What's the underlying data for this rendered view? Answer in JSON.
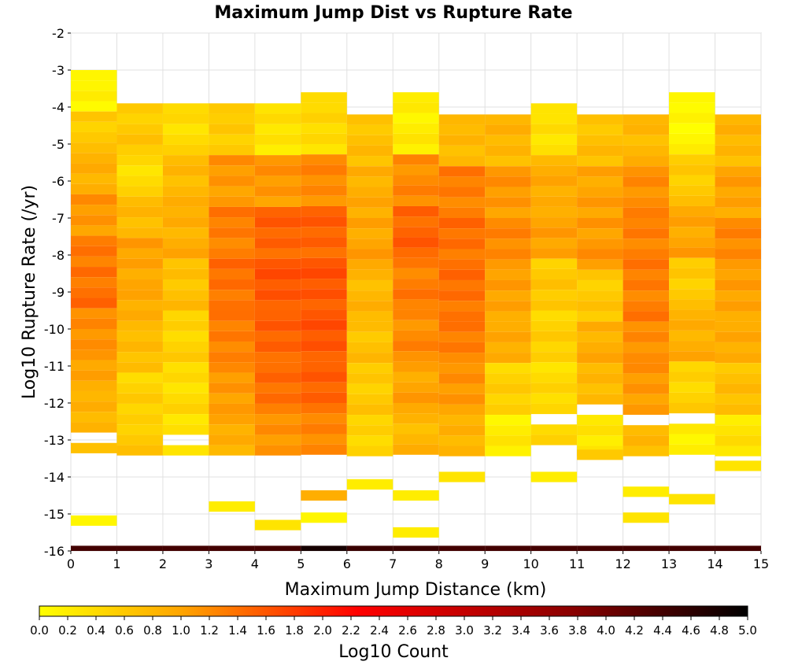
{
  "chart_data": {
    "type": "heatmap",
    "title": "Maximum Jump Dist vs Rupture Rate",
    "xlabel": "Maximum Jump Distance (km)",
    "ylabel": "Log10 Rupture Rate (/yr)",
    "xlim": [
      0,
      15
    ],
    "ylim": [
      -16,
      -2
    ],
    "x_ticks": [
      "0",
      "1",
      "2",
      "3",
      "4",
      "5",
      "6",
      "7",
      "8",
      "9",
      "10",
      "11",
      "12",
      "13",
      "14",
      "15"
    ],
    "y_ticks": [
      "-2",
      "-3",
      "-4",
      "-5",
      "-6",
      "-7",
      "-8",
      "-9",
      "-10",
      "-11",
      "-12",
      "-13",
      "-14",
      "-15",
      "-16"
    ],
    "x_bin_width": 1,
    "y_bin_width": 0.28,
    "y_bin_start": -16,
    "grid": true,
    "colorbar": {
      "label": "Log10 Count",
      "min": 0.0,
      "max": 5.0,
      "ticks": [
        "0.0",
        "0.2",
        "0.4",
        "0.6",
        "0.8",
        "1.0",
        "1.2",
        "1.4",
        "1.6",
        "1.8",
        "2.0",
        "2.2",
        "2.4",
        "2.6",
        "2.8",
        "3.0",
        "3.2",
        "3.4",
        "3.6",
        "3.8",
        "4.0",
        "4.2",
        "4.4",
        "4.6",
        "4.8",
        "5.0"
      ],
      "colors": [
        "#ffff00",
        "#ffa500",
        "#ff0000",
        "#8b0000",
        "#000000"
      ]
    },
    "columns": [
      {
        "x": 0,
        "ymax": -3.0,
        "cells": [
          {
            "y": -15.18,
            "v": 0.1
          }
        ],
        "base_v": 1.0,
        "gaps": [
          -13.0
        ],
        "levels": [
          0.1,
          0.6,
          0.9,
          1.1,
          1.3,
          1.4,
          1.2,
          1.0,
          0.8,
          0.7
        ]
      },
      {
        "x": 1,
        "ymax": -3.9,
        "cells": [],
        "base_v": 0.8,
        "gaps": [],
        "levels": [
          0.6,
          0.4,
          0.8,
          1.0,
          0.9,
          0.7,
          0.5,
          0.6
        ]
      },
      {
        "x": 2,
        "ymax": -3.9,
        "cells": [],
        "base_v": 0.7,
        "gaps": [
          -13.0
        ],
        "levels": [
          0.4,
          0.8,
          0.9,
          0.7,
          0.5,
          0.4,
          0.3
        ]
      },
      {
        "x": 3,
        "ymax": -3.9,
        "cells": [
          {
            "y": -14.8,
            "v": 0.2
          }
        ],
        "base_v": 1.2,
        "gaps": [],
        "levels": [
          0.6,
          1.1,
          1.3,
          1.4,
          1.3,
          1.1,
          0.9
        ]
      },
      {
        "x": 4,
        "ymax": -3.9,
        "cells": [
          {
            "y": -15.3,
            "v": 0.3
          }
        ],
        "base_v": 1.3,
        "gaps": [],
        "levels": [
          0.3,
          1.1,
          1.5,
          1.6,
          1.5,
          1.4,
          1.1
        ]
      },
      {
        "x": 5,
        "ymax": -3.6,
        "cells": [
          {
            "y": -14.5,
            "v": 0.9
          },
          {
            "y": -15.1,
            "v": 0.1
          }
        ],
        "base_v": 1.4,
        "gaps": [],
        "levels": [
          0.4,
          1.2,
          1.5,
          1.6,
          1.6,
          1.5,
          1.2
        ]
      },
      {
        "x": 6,
        "ymax": -4.2,
        "cells": [
          {
            "y": -14.2,
            "v": 0.2
          }
        ],
        "base_v": 1.0,
        "gaps": [],
        "levels": [
          0.7,
          0.9,
          1.0,
          0.8,
          0.7,
          0.6,
          0.5
        ]
      },
      {
        "x": 7,
        "ymax": -3.6,
        "cells": [
          {
            "y": -14.5,
            "v": 0.2
          },
          {
            "y": -15.5,
            "v": 0.2
          }
        ],
        "base_v": 1.3,
        "gaps": [],
        "levels": [
          0.2,
          1.2,
          1.5,
          1.3,
          1.2,
          1.0,
          0.8
        ]
      },
      {
        "x": 8,
        "ymax": -4.2,
        "cells": [
          {
            "y": -14.0,
            "v": 0.3
          }
        ],
        "base_v": 1.3,
        "gaps": [],
        "levels": [
          0.8,
          1.3,
          1.4,
          1.4,
          1.3,
          1.1,
          0.8
        ]
      },
      {
        "x": 9,
        "ymax": -4.2,
        "cells": [],
        "base_v": 1.1,
        "gaps": [],
        "levels": [
          0.8,
          1.1,
          1.2,
          1.0,
          0.9,
          0.5,
          0.2
        ]
      },
      {
        "x": 10,
        "ymax": -3.9,
        "cells": [
          {
            "y": -14.0,
            "v": 0.2
          }
        ],
        "base_v": 0.9,
        "gaps": [
          -12.4,
          -13.2
        ],
        "levels": [
          0.3,
          0.9,
          1.0,
          0.6,
          0.5,
          0.4,
          0.4
        ]
      },
      {
        "x": 11,
        "ymax": -4.2,
        "cells": [
          {
            "y": -13.4,
            "v": 0.6
          }
        ],
        "base_v": 0.9,
        "gaps": [
          -12.1
        ],
        "levels": [
          0.7,
          1.0,
          1.1,
          0.6,
          0.9,
          0.8,
          0.3
        ]
      },
      {
        "x": 12,
        "ymax": -4.2,
        "cells": [
          {
            "y": -14.4,
            "v": 0.2
          },
          {
            "y": -15.1,
            "v": 0.3
          }
        ],
        "base_v": 1.2,
        "gaps": [
          -12.4
        ],
        "levels": [
          0.8,
          1.2,
          1.3,
          1.3,
          1.2,
          1.1,
          0.8
        ]
      },
      {
        "x": 13,
        "ymax": -3.6,
        "cells": [
          {
            "y": -14.6,
            "v": 0.3
          }
        ],
        "base_v": 0.9,
        "gaps": [
          -12.4
        ],
        "levels": [
          0.1,
          0.6,
          1.0,
          0.6,
          0.9,
          0.5,
          0.2
        ]
      },
      {
        "x": 14,
        "ymax": -4.2,
        "cells": [
          {
            "y": -13.7,
            "v": 0.3
          }
        ],
        "base_v": 1.0,
        "gaps": [],
        "levels": [
          0.8,
          1.0,
          1.2,
          1.0,
          0.9,
          0.7,
          0.3
        ]
      }
    ],
    "bottom_row": {
      "y": -16,
      "values": [
        4.4,
        4.4,
        4.4,
        4.4,
        4.4,
        4.8,
        4.5,
        4.5,
        4.4,
        4.4,
        4.4,
        4.4,
        4.4,
        4.4,
        4.4
      ]
    }
  }
}
